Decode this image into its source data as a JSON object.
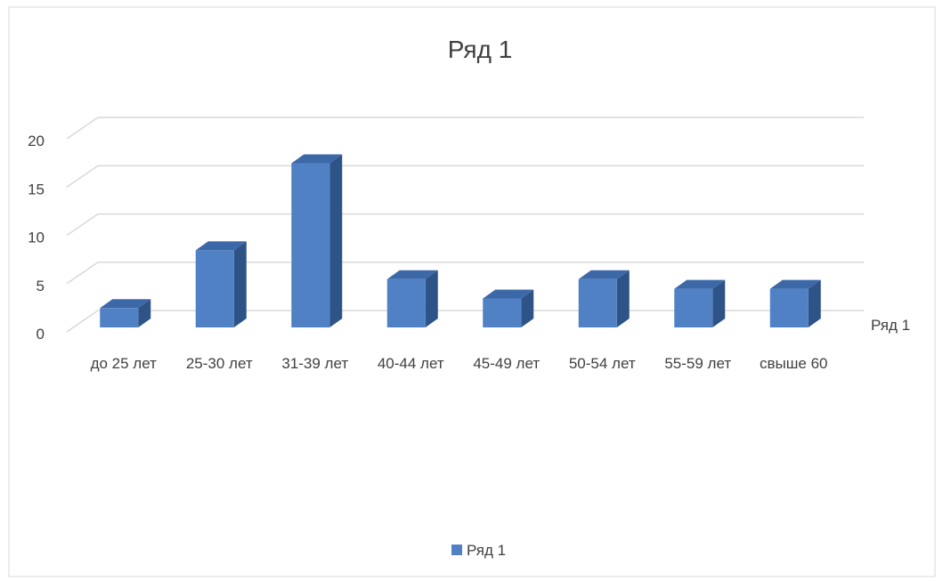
{
  "chart_data": {
    "type": "bar",
    "view": "3d-column",
    "title": "Ряд 1",
    "categories": [
      "до 25 лет",
      "25-30 лет",
      "31-39 лет",
      "40-44 лет",
      "45-49 лет",
      "50-54 лет",
      "55-59 лет",
      "свыше 60"
    ],
    "series": [
      {
        "name": "Ряд 1",
        "values": [
          2,
          8,
          17,
          5,
          3,
          5,
          4,
          4
        ]
      }
    ],
    "yticks": [
      "0",
      "5",
      "10",
      "15",
      "20"
    ],
    "ylim": [
      0,
      20
    ],
    "depth_axis_label": "Ряд 1",
    "grid": true,
    "legend": {
      "position": "bottom",
      "entries": [
        "Ряд 1"
      ]
    },
    "colors": {
      "bar_front": "#4f81c4",
      "bar_side": "#2e5387",
      "bar_top": "#3d68a8",
      "grid": "#d9d9d9",
      "text": "#404040"
    }
  }
}
